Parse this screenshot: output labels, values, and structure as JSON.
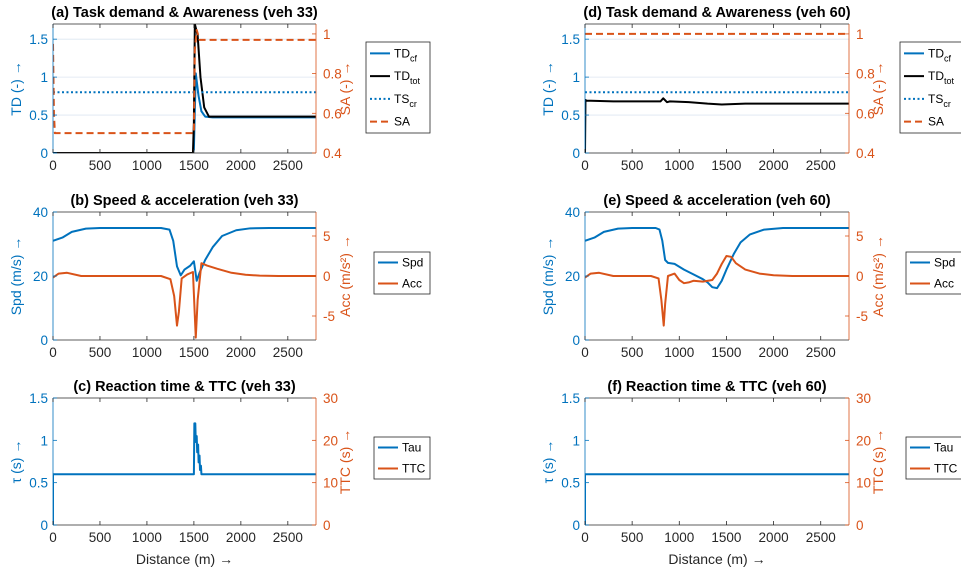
{
  "colors": {
    "blue": "#0072BD",
    "orange": "#D95319",
    "black": "#000000",
    "grid": "#DCE6F0",
    "axis": "#262626"
  },
  "chart_data": [
    {
      "id": "a",
      "type": "line",
      "title": "(a) Task demand & Awareness (veh 33)",
      "xlabel": "",
      "ylabel_left": "TD (-) →",
      "ylabel_right": "SA (-) →",
      "xlim": [
        0,
        2800
      ],
      "ylim_left": [
        0,
        1.7
      ],
      "ylim_right": [
        0.4,
        1.05
      ],
      "xticks": [
        0,
        500,
        1000,
        1500,
        2000,
        2500
      ],
      "yticks_left": [
        0,
        0.5,
        1,
        1.5
      ],
      "yticks_right": [
        0.4,
        0.6,
        0.8,
        1
      ],
      "xtick_labels": [
        "0",
        "500",
        "1000",
        "1500",
        "2000",
        "2500"
      ],
      "ytick_labels_left": [
        "0",
        "0.5",
        "1",
        "1.5"
      ],
      "ytick_labels_right": [
        "0.4",
        "0.6",
        "0.8",
        "1"
      ],
      "grid_y": true,
      "legend_position": "right",
      "series": [
        {
          "name": "TD",
          "sub": "cf",
          "axis": "left",
          "color": "blue",
          "style": "solid",
          "x": [
            0,
            1490,
            1500,
            1520,
            1550,
            1580,
            1620,
            1700,
            2800
          ],
          "y": [
            0,
            0,
            0.05,
            1.05,
            0.75,
            0.55,
            0.48,
            0.47,
            0.47
          ]
        },
        {
          "name": "TD",
          "sub": "tot",
          "axis": "left",
          "color": "black",
          "style": "solid",
          "x": [
            0,
            1490,
            1500,
            1510,
            1540,
            1570,
            1610,
            1660,
            2800
          ],
          "y": [
            0,
            0,
            0.4,
            1.7,
            1.55,
            1.0,
            0.6,
            0.48,
            0.48
          ]
        },
        {
          "name": "TS",
          "sub": "cr",
          "axis": "left",
          "color": "blue",
          "style": "dotted",
          "x": [
            0,
            2800
          ],
          "y": [
            0.8,
            0.8
          ]
        },
        {
          "name": "SA",
          "sub": "",
          "axis": "right",
          "color": "orange",
          "style": "dashed",
          "x": [
            0,
            10,
            20,
            1500,
            1510,
            1530,
            1560,
            1620,
            2800
          ],
          "y": [
            0.95,
            0.6,
            0.5,
            0.5,
            0.92,
            1.02,
            0.97,
            0.97,
            0.97
          ]
        }
      ]
    },
    {
      "id": "b",
      "type": "line",
      "title": "(b) Speed & acceleration (veh 33)",
      "xlabel": "",
      "ylabel_left": "Spd (m/s) →",
      "ylabel_right": "Acc (m/s²) →",
      "xlim": [
        0,
        2800
      ],
      "ylim_left": [
        0,
        40
      ],
      "ylim_right": [
        -8,
        8
      ],
      "xticks": [
        0,
        500,
        1000,
        1500,
        2000,
        2500
      ],
      "yticks_left": [
        0,
        20,
        40
      ],
      "yticks_right": [
        -5,
        0,
        5
      ],
      "xtick_labels": [
        "0",
        "500",
        "1000",
        "1500",
        "2000",
        "2500"
      ],
      "ytick_labels_left": [
        "0",
        "20",
        "40"
      ],
      "ytick_labels_right": [
        "-5",
        "0",
        "5"
      ],
      "grid_y": false,
      "legend_position": "right",
      "series": [
        {
          "name": "Spd",
          "sub": "",
          "axis": "left",
          "color": "blue",
          "style": "solid",
          "x": [
            0,
            100,
            200,
            350,
            500,
            800,
            1150,
            1240,
            1280,
            1320,
            1360,
            1400,
            1460,
            1500,
            1530,
            1560,
            1620,
            1700,
            1800,
            1950,
            2100,
            2300,
            2800
          ],
          "y": [
            31,
            32,
            33.8,
            34.8,
            35,
            35,
            35,
            34.5,
            31,
            23,
            20.2,
            22,
            23.2,
            24.6,
            18.5,
            21,
            25,
            29,
            32.5,
            34.3,
            34.9,
            35,
            35
          ]
        },
        {
          "name": "Acc",
          "sub": "",
          "axis": "right",
          "color": "orange",
          "style": "solid",
          "x": [
            0,
            60,
            150,
            300,
            1150,
            1250,
            1290,
            1320,
            1340,
            1370,
            1430,
            1490,
            1510,
            1520,
            1540,
            1580,
            1640,
            1750,
            1900,
            2050,
            2200,
            2400,
            2800
          ],
          "y": [
            -0.2,
            0.3,
            0.4,
            0,
            0,
            -0.4,
            -2.5,
            -6.2,
            -4.5,
            -0.3,
            0.2,
            0.5,
            -5,
            -7.7,
            -3,
            1.6,
            1.3,
            0.9,
            0.4,
            0.15,
            0.05,
            0,
            0
          ]
        }
      ]
    },
    {
      "id": "c",
      "type": "line",
      "title": "(c) Reaction time & TTC (veh 33)",
      "xlabel": "Distance (m) →",
      "ylabel_left": "τ (s) →",
      "ylabel_right": "TTC (s) →",
      "xlim": [
        0,
        2800
      ],
      "ylim_left": [
        0,
        1.5
      ],
      "ylim_right": [
        0,
        30
      ],
      "xticks": [
        0,
        500,
        1000,
        1500,
        2000,
        2500
      ],
      "yticks_left": [
        0,
        0.5,
        1,
        1.5
      ],
      "yticks_right": [
        0,
        10,
        20,
        30
      ],
      "xtick_labels": [
        "0",
        "500",
        "1000",
        "1500",
        "2000",
        "2500"
      ],
      "ytick_labels_left": [
        "0",
        "0.5",
        "1",
        "1.5"
      ],
      "ytick_labels_right": [
        "0",
        "10",
        "20",
        "30"
      ],
      "grid_y": false,
      "legend_position": "right",
      "series": [
        {
          "name": "Tau",
          "sub": "",
          "axis": "left",
          "color": "blue",
          "style": "solid",
          "x": [
            0,
            0,
            5,
            1500,
            1505,
            1515,
            1520,
            1530,
            1535,
            1545,
            1550,
            1560,
            1565,
            1575,
            1580,
            1590,
            2800
          ],
          "y": [
            0,
            0.6,
            0.6,
            0.6,
            1.2,
            1.2,
            0.98,
            1.05,
            0.86,
            0.95,
            0.74,
            0.82,
            0.65,
            0.7,
            0.6,
            0.6,
            0.6
          ]
        },
        {
          "name": "TTC",
          "sub": "",
          "axis": "right",
          "color": "orange",
          "style": "solid",
          "x": [],
          "y": []
        }
      ]
    },
    {
      "id": "d",
      "type": "line",
      "title": "(d) Task demand & Awareness (veh 60)",
      "xlabel": "",
      "ylabel_left": "TD (-) →",
      "ylabel_right": "SA (-) →",
      "xlim": [
        0,
        2800
      ],
      "ylim_left": [
        0,
        1.7
      ],
      "ylim_right": [
        0.4,
        1.05
      ],
      "xticks": [
        0,
        500,
        1000,
        1500,
        2000,
        2500
      ],
      "yticks_left": [
        0,
        0.5,
        1,
        1.5
      ],
      "yticks_right": [
        0.4,
        0.6,
        0.8,
        1
      ],
      "xtick_labels": [
        "0",
        "500",
        "1000",
        "1500",
        "2000",
        "2500"
      ],
      "ytick_labels_left": [
        "0",
        "0.5",
        "1",
        "1.5"
      ],
      "ytick_labels_right": [
        "0.4",
        "0.6",
        "0.8",
        "1"
      ],
      "grid_y": true,
      "legend_position": "right",
      "series": [
        {
          "name": "TD",
          "sub": "cf",
          "axis": "left",
          "color": "blue",
          "style": "solid",
          "x": [],
          "y": []
        },
        {
          "name": "TD",
          "sub": "tot",
          "axis": "left",
          "color": "black",
          "style": "solid",
          "x": [
            0,
            5,
            15,
            300,
            800,
            830,
            870,
            900,
            1100,
            1300,
            1450,
            1700,
            2800
          ],
          "y": [
            0,
            0.7,
            0.69,
            0.68,
            0.68,
            0.72,
            0.67,
            0.68,
            0.67,
            0.65,
            0.64,
            0.65,
            0.65
          ]
        },
        {
          "name": "TS",
          "sub": "cr",
          "axis": "left",
          "color": "blue",
          "style": "dotted",
          "x": [
            0,
            2800
          ],
          "y": [
            0.8,
            0.8
          ]
        },
        {
          "name": "SA",
          "sub": "",
          "axis": "right",
          "color": "orange",
          "style": "dashed",
          "x": [
            0,
            2800
          ],
          "y": [
            1,
            1
          ]
        }
      ]
    },
    {
      "id": "e",
      "type": "line",
      "title": "(e) Speed & acceleration (veh 60)",
      "xlabel": "",
      "ylabel_left": "Spd (m/s) →",
      "ylabel_right": "Acc (m/s²) →",
      "xlim": [
        0,
        2800
      ],
      "ylim_left": [
        0,
        40
      ],
      "ylim_right": [
        -8,
        8
      ],
      "xticks": [
        0,
        500,
        1000,
        1500,
        2000,
        2500
      ],
      "yticks_left": [
        0,
        20,
        40
      ],
      "yticks_right": [
        -5,
        0,
        5
      ],
      "xtick_labels": [
        "0",
        "500",
        "1000",
        "1500",
        "2000",
        "2500"
      ],
      "ytick_labels_left": [
        "0",
        "20",
        "40"
      ],
      "ytick_labels_right": [
        "-5",
        "0",
        "5"
      ],
      "grid_y": false,
      "legend_position": "right",
      "series": [
        {
          "name": "Spd",
          "sub": "",
          "axis": "left",
          "color": "blue",
          "style": "solid",
          "x": [
            0,
            100,
            200,
            350,
            500,
            750,
            790,
            820,
            850,
            880,
            950,
            1050,
            1150,
            1250,
            1300,
            1350,
            1400,
            1450,
            1500,
            1580,
            1650,
            1750,
            1900,
            2100,
            2300,
            2800
          ],
          "y": [
            31,
            32,
            33.8,
            34.8,
            35,
            35,
            34.5,
            31,
            25,
            24.1,
            23.8,
            22,
            20.5,
            19,
            18,
            16.5,
            16.2,
            18.5,
            22,
            27,
            30.5,
            33,
            34.5,
            35,
            35,
            35
          ]
        },
        {
          "name": "Acc",
          "sub": "",
          "axis": "right",
          "color": "orange",
          "style": "solid",
          "x": [
            0,
            60,
            150,
            300,
            700,
            780,
            810,
            835,
            850,
            880,
            950,
            1000,
            1050,
            1100,
            1150,
            1250,
            1350,
            1400,
            1450,
            1500,
            1550,
            1600,
            1700,
            1850,
            2000,
            2200,
            2800
          ],
          "y": [
            -0.2,
            0.3,
            0.4,
            0,
            0,
            -0.3,
            -3,
            -6.2,
            -3.5,
            0,
            0.3,
            -0.5,
            -0.9,
            -0.8,
            -0.6,
            -0.7,
            -0.5,
            0.3,
            1.5,
            2.5,
            2.4,
            1.6,
            0.8,
            0.3,
            0.1,
            0,
            0
          ]
        }
      ]
    },
    {
      "id": "f",
      "type": "line",
      "title": "(f) Reaction time & TTC (veh 60)",
      "xlabel": "Distance (m) →",
      "ylabel_left": "τ (s) →",
      "ylabel_right": "TTC (s) →",
      "xlim": [
        0,
        2800
      ],
      "ylim_left": [
        0,
        1.5
      ],
      "ylim_right": [
        0,
        30
      ],
      "xticks": [
        0,
        500,
        1000,
        1500,
        2000,
        2500
      ],
      "yticks_left": [
        0,
        0.5,
        1,
        1.5
      ],
      "yticks_right": [
        0,
        10,
        20,
        30
      ],
      "xtick_labels": [
        "0",
        "500",
        "1000",
        "1500",
        "2000",
        "2500"
      ],
      "ytick_labels_left": [
        "0",
        "0.5",
        "1",
        "1.5"
      ],
      "ytick_labels_right": [
        "0",
        "10",
        "20",
        "30"
      ],
      "grid_y": false,
      "legend_position": "right",
      "series": [
        {
          "name": "Tau",
          "sub": "",
          "axis": "left",
          "color": "blue",
          "style": "solid",
          "x": [
            0,
            0,
            5,
            2800
          ],
          "y": [
            0,
            0.6,
            0.6,
            0.6
          ]
        },
        {
          "name": "TTC",
          "sub": "",
          "axis": "right",
          "color": "orange",
          "style": "solid",
          "x": [],
          "y": []
        }
      ]
    }
  ]
}
